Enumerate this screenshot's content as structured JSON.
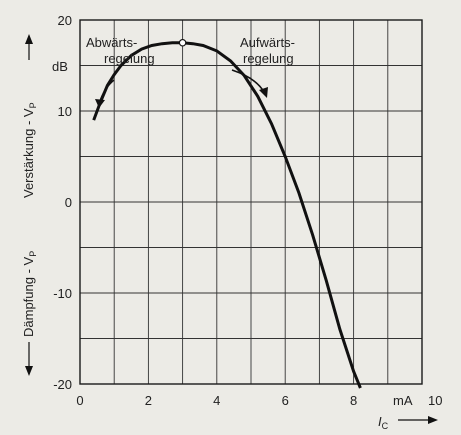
{
  "chart_data": {
    "type": "line",
    "x_ticks": [
      "0",
      "2",
      "4",
      "6",
      "8",
      "10"
    ],
    "y_ticks": [
      "20",
      "10",
      "0",
      "-10",
      "-20"
    ],
    "x_unit": "mA",
    "y_unit": "dB",
    "xlim": [
      0,
      10
    ],
    "ylim": [
      -20,
      20
    ],
    "xlabel": "I",
    "xlabel_sub": "C",
    "ylabel_top": "Verstärkung - V",
    "ylabel_top_sub": "P",
    "ylabel_bottom": "Dämpfung - V",
    "ylabel_bottom_sub": "P",
    "annotations": [
      {
        "line1": "Abwärts-",
        "line2": "regelung"
      },
      {
        "line1": "Aufwärts-",
        "line2": "regelung"
      }
    ],
    "grid": true,
    "series": [
      {
        "x": [
          0.4,
          0.6,
          0.8,
          1.0,
          1.2,
          1.5,
          1.8,
          2.1,
          2.4,
          2.7,
          3.0,
          3.3,
          3.6,
          4.0,
          4.4,
          4.8,
          5.2,
          5.6,
          6.0,
          6.4,
          6.8,
          7.2,
          7.6,
          8.0,
          8.2
        ],
        "y": [
          9,
          11,
          12.8,
          14,
          15,
          16.1,
          16.8,
          17.2,
          17.4,
          17.5,
          17.5,
          17.4,
          17.2,
          16.6,
          15.5,
          13.9,
          11.6,
          8.6,
          5,
          1,
          -3.6,
          -8.6,
          -14,
          -18.6,
          -20.5
        ]
      }
    ],
    "marker": {
      "x": 3.0,
      "y": 17.5
    }
  }
}
